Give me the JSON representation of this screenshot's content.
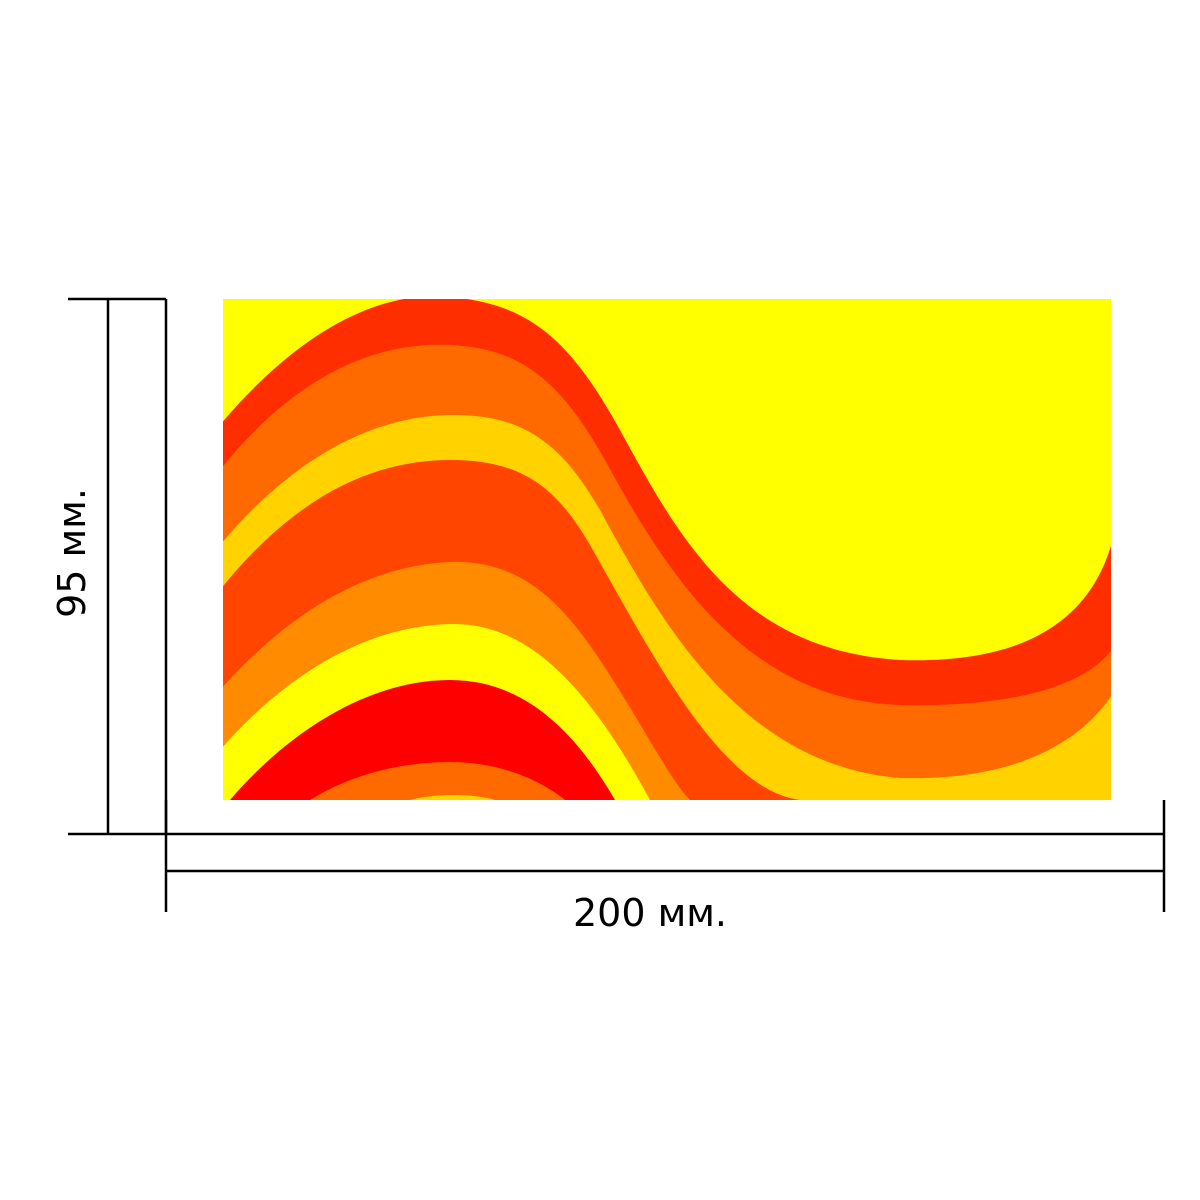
{
  "dimensions": {
    "width_label": "200 мм.",
    "height_label": "95 мм."
  },
  "artwork": {
    "description_colors": {
      "background": "#FFFF00",
      "band_red": "#FF2E00",
      "band_dark_orange": "#FF4500",
      "band_orange": "#FF6A00",
      "band_amber": "#FF8C00",
      "band_gold": "#FFD200",
      "band_yellow": "#FFFF00",
      "band_pure_red": "#FF0000"
    }
  },
  "colors": {
    "line": "#000000",
    "page": "#FFFFFF"
  }
}
